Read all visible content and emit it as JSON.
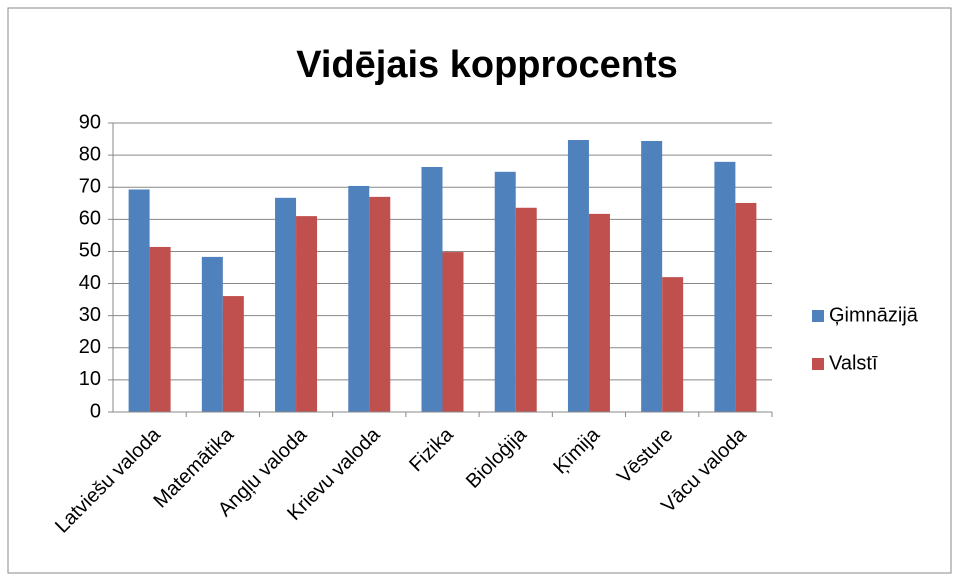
{
  "chart_data": {
    "type": "bar",
    "title": "Vidējais kopprocents",
    "categories": [
      "Latviešu valoda",
      "Matemātika",
      "Angļu valoda",
      "Krievu valoda",
      "Fizika",
      "Bioloģija",
      "Ķīmija",
      "Vēsture",
      "Vācu valoda"
    ],
    "series": [
      {
        "name": "Ģimnāzijā",
        "color": "#4f81bd",
        "values": [
          69.3,
          48.3,
          66.7,
          70.4,
          76.3,
          74.8,
          84.7,
          84.4,
          77.9
        ]
      },
      {
        "name": "Valstī",
        "color": "#c0504d",
        "values": [
          51.4,
          36.1,
          61.0,
          67.0,
          49.8,
          63.6,
          61.7,
          42.0,
          65.1
        ]
      }
    ],
    "ylim": [
      0,
      90
    ],
    "yticks": [
      0,
      10,
      20,
      30,
      40,
      50,
      60,
      70,
      80,
      90
    ],
    "grid": true,
    "legend": "right"
  }
}
